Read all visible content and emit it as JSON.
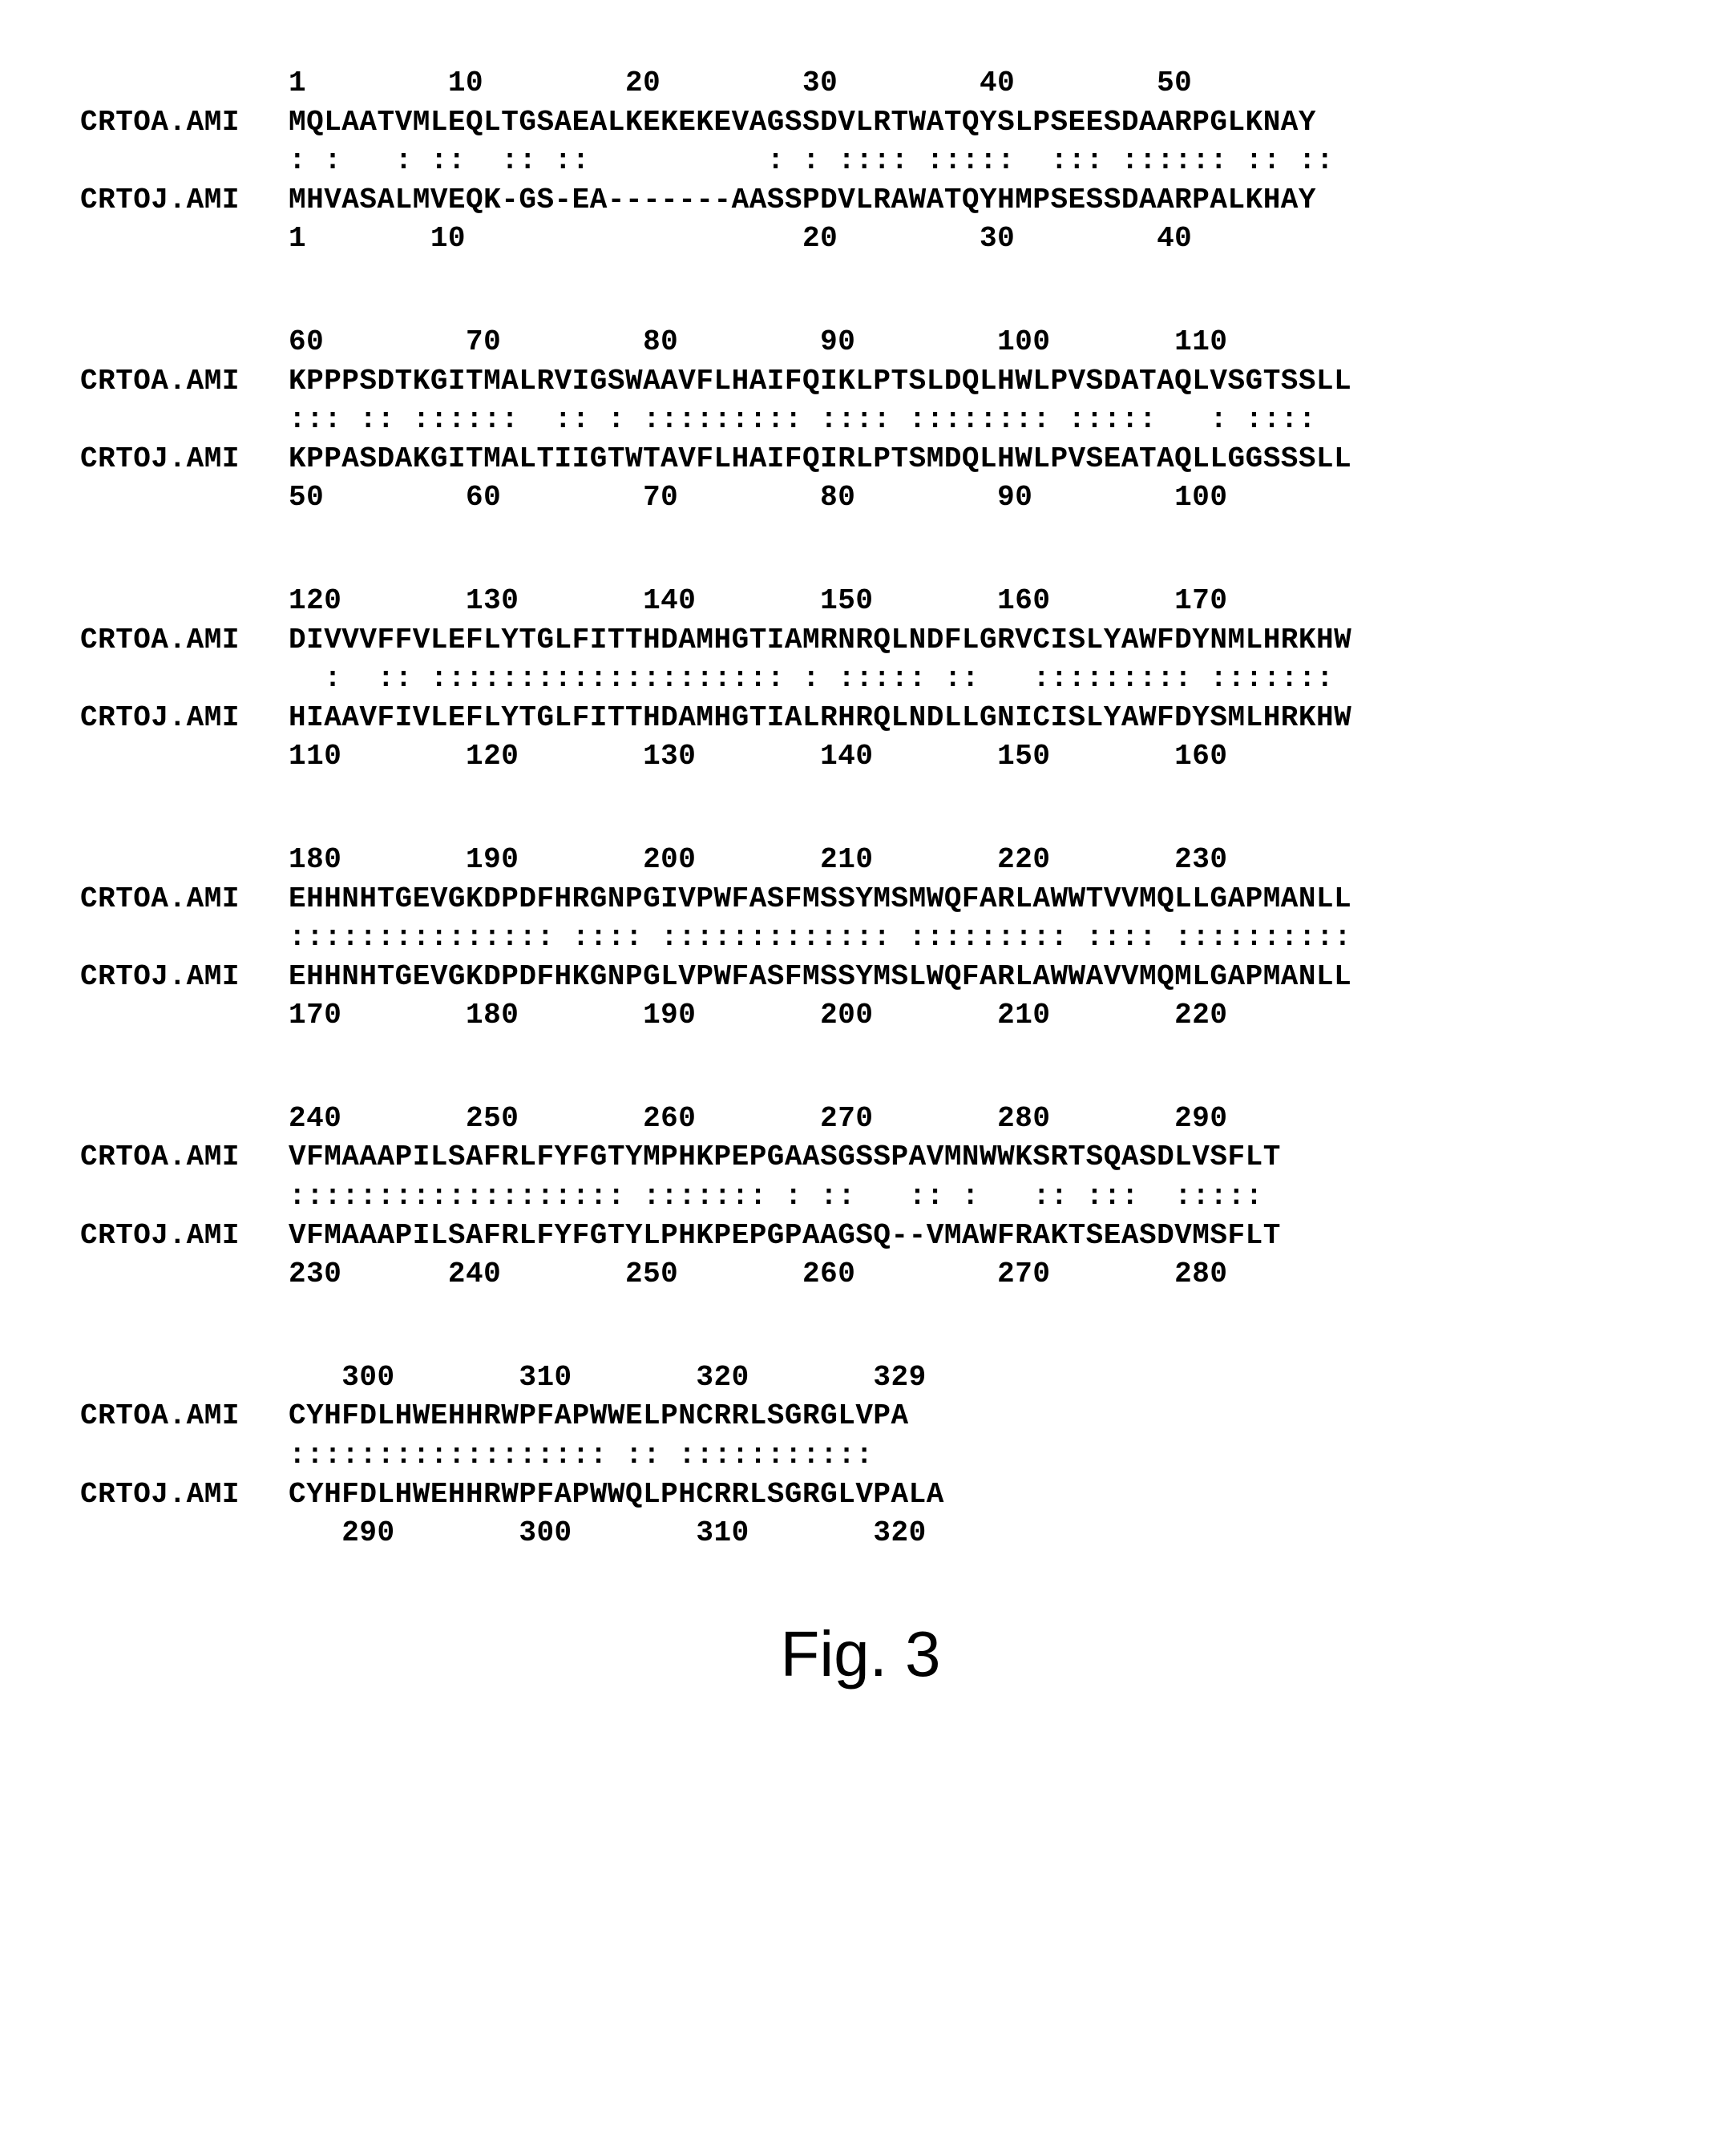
{
  "figure_caption": "Fig. 3",
  "label_a": "CRTOA.AMI",
  "label_j": "CRTOJ.AMI",
  "blocks": [
    {
      "top_ruler": "1        10        20        30        40        50",
      "seq_a": "MQLAATVMLEQLTGSAEALKEKEKEVAGSSDVLRTWATQYSLPSEESDAARPGLKNAY",
      "match": ": :   : ::  :: ::          : : :::: :::::  ::: :::::: :: ::",
      "seq_j": "MHVASALMVEQK-GS-EA-------AASSPDVLRAWATQYHMPSESSDAARPALKHAY",
      "bottom_ruler": "1       10                   20        30        40"
    },
    {
      "top_ruler": "60        70        80        90        100       110",
      "seq_a": "KPPPSDTKGITMALRVIGSWAAVFLHAIFQIKLPTSLDQLHWLPVSDATAQLVSGTSSLL",
      "match": "::: :: ::::::  :: : ::::::::: :::: :::::::: :::::   : ::::",
      "seq_j": "KPPASDAKGITMALTIIGTWTAVFLHAIFQIRLPTSMDQLHWLPVSEATAQLLGGSSSLL",
      "bottom_ruler": "50        60        70        80        90        100"
    },
    {
      "top_ruler": "120       130       140       150       160       170",
      "seq_a": "DIVVVFFVLEFLYTGLFITTHDAMHGTIAMRNRQLNDFLGRVCISLYAWFDYNMLHRKHW",
      "match": "  :  :: :::::::::::::::::::: : ::::: ::   ::::::::: :::::::",
      "seq_j": "HIAAVFIVLEFLYTGLFITTHDAMHGTIALRHRQLNDLLGNICISLYAWFDYSMLHRKHW",
      "bottom_ruler": "110       120       130       140       150       160"
    },
    {
      "top_ruler": "180       190       200       210       220       230",
      "seq_a": "EHHNHTGEVGKDPDFHRGNPGIVPWFASFMSSYMSMWQFARLAWWTVVMQLLGAPMANLL",
      "match": "::::::::::::::: :::: ::::::::::::: ::::::::: :::: ::::::::::",
      "seq_j": "EHHNHTGEVGKDPDFHKGNPGLVPWFASFMSSYMSLWQFARLAWWAVVMQMLGAPMANLL",
      "bottom_ruler": "170       180       190       200       210       220"
    },
    {
      "top_ruler": "240       250       260       270       280       290",
      "seq_a": "VFMAAAPILSAFRLFYFGTYMPHKPEPGAASGSSPAVMNWWKSRTSQASDLVSFLT",
      "match": "::::::::::::::::::: ::::::: : ::   :: :   :: :::  :::::",
      "seq_j": "VFMAAAPILSAFRLFYFGTYLPHKPEPGPAAGSQ--VMAWFRAKTSEASDVMSFLT",
      "bottom_ruler": "230      240       250       260        270       280"
    },
    {
      "top_ruler": "   300       310       320       329",
      "seq_a": "CYHFDLHWEHHRWPFAPWWELPNCRRLSGRGLVPA",
      "match": ":::::::::::::::::: :: :::::::::::",
      "seq_j": "CYHFDLHWEHHRWPFAPWWQLPHCRRLSGRGLVPALA",
      "bottom_ruler": "   290       300       310       320"
    }
  ]
}
